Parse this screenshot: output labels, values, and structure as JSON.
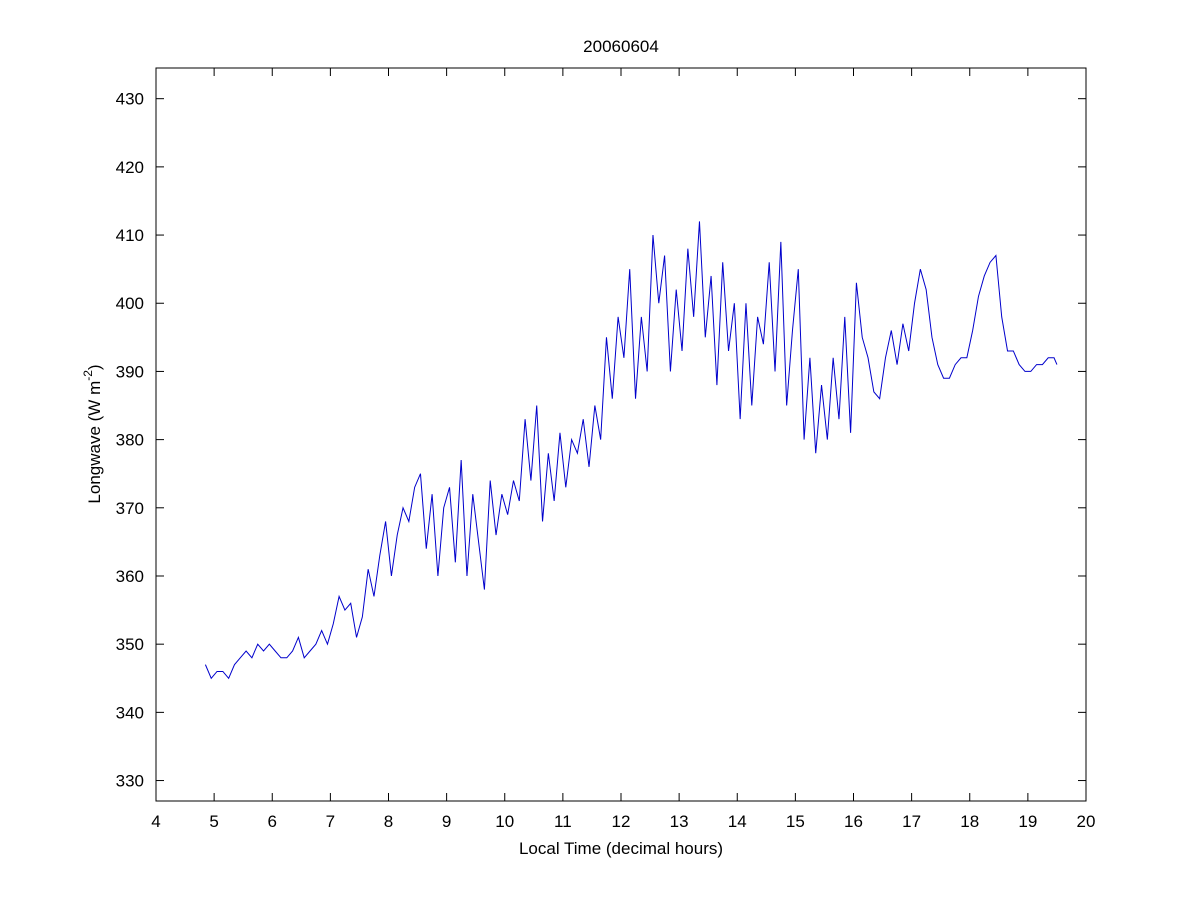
{
  "chart_data": {
    "type": "line",
    "title": "20060604",
    "xlabel": "Local Time (decimal hours)",
    "ylabel": {
      "text": "Longwave (W m",
      "superscript": "-2",
      "suffix": ")"
    },
    "x": [
      4.85,
      4.95,
      5.05,
      5.15,
      5.25,
      5.35,
      5.45,
      5.55,
      5.65,
      5.75,
      5.85,
      5.95,
      6.05,
      6.15,
      6.25,
      6.35,
      6.45,
      6.55,
      6.65,
      6.75,
      6.85,
      6.95,
      7.05,
      7.15,
      7.25,
      7.35,
      7.45,
      7.55,
      7.65,
      7.75,
      7.85,
      7.95,
      8.05,
      8.15,
      8.25,
      8.35,
      8.45,
      8.55,
      8.65,
      8.75,
      8.85,
      8.95,
      9.05,
      9.15,
      9.25,
      9.35,
      9.45,
      9.55,
      9.65,
      9.75,
      9.85,
      9.95,
      10.05,
      10.15,
      10.25,
      10.35,
      10.45,
      10.55,
      10.65,
      10.75,
      10.85,
      10.95,
      11.05,
      11.15,
      11.25,
      11.35,
      11.45,
      11.55,
      11.65,
      11.75,
      11.85,
      11.95,
      12.05,
      12.15,
      12.25,
      12.35,
      12.45,
      12.55,
      12.65,
      12.75,
      12.85,
      12.95,
      13.05,
      13.15,
      13.25,
      13.35,
      13.45,
      13.55,
      13.65,
      13.75,
      13.85,
      13.95,
      14.05,
      14.15,
      14.25,
      14.35,
      14.45,
      14.55,
      14.65,
      14.75,
      14.85,
      14.95,
      15.05,
      15.15,
      15.25,
      15.35,
      15.45,
      15.55,
      15.65,
      15.75,
      15.85,
      15.95,
      16.05,
      16.15,
      16.25,
      16.35,
      16.45,
      16.55,
      16.65,
      16.75,
      16.85,
      16.95,
      17.05,
      17.15,
      17.25,
      17.35,
      17.45,
      17.55,
      17.65,
      17.75,
      17.85,
      17.95,
      18.05,
      18.15,
      18.25,
      18.35,
      18.45,
      18.55,
      18.65,
      18.75,
      18.85,
      18.95,
      19.05,
      19.15,
      19.25,
      19.35,
      19.45,
      19.5
    ],
    "series": [
      {
        "name": "Longwave",
        "color": "#0000cc",
        "values": [
          347,
          345,
          346,
          346,
          345,
          347,
          348,
          349,
          348,
          350,
          349,
          350,
          349,
          348,
          348,
          349,
          351,
          348,
          349,
          350,
          352,
          350,
          353,
          357,
          355,
          356,
          351,
          354,
          361,
          357,
          363,
          368,
          360,
          366,
          370,
          368,
          373,
          375,
          364,
          372,
          360,
          370,
          373,
          362,
          377,
          360,
          372,
          365,
          358,
          374,
          366,
          372,
          369,
          374,
          371,
          383,
          374,
          385,
          368,
          378,
          371,
          381,
          373,
          380,
          378,
          383,
          376,
          385,
          380,
          395,
          386,
          398,
          392,
          405,
          386,
          398,
          390,
          410,
          400,
          407,
          390,
          402,
          393,
          408,
          398,
          412,
          395,
          404,
          388,
          406,
          393,
          400,
          383,
          400,
          385,
          398,
          394,
          406,
          390,
          409,
          385,
          396,
          405,
          380,
          392,
          378,
          388,
          380,
          392,
          383,
          398,
          381,
          403,
          395,
          392,
          387,
          386,
          392,
          396,
          391,
          397,
          393,
          400,
          405,
          402,
          395,
          391,
          389,
          389,
          391,
          392,
          392,
          396,
          401,
          404,
          406,
          407,
          398,
          393,
          393,
          391,
          390,
          390,
          391,
          391,
          392,
          392,
          391
        ]
      }
    ],
    "xlim": [
      4,
      20
    ],
    "xticks": [
      4,
      5,
      6,
      7,
      8,
      9,
      10,
      11,
      12,
      13,
      14,
      15,
      16,
      17,
      18,
      19,
      20
    ],
    "ylim": [
      327,
      434.5
    ],
    "yticks": [
      330,
      340,
      350,
      360,
      370,
      380,
      390,
      400,
      410,
      420,
      430
    ]
  }
}
